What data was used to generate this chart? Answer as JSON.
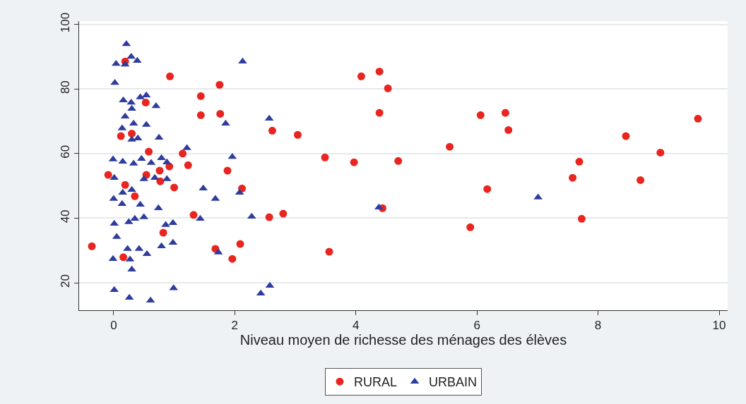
{
  "chart_data": {
    "type": "scatter",
    "xlabel": "Niveau moyen de richesse des ménages des élèves",
    "xlim": [
      -0.57,
      10.14
    ],
    "xticks": [
      0,
      2,
      4,
      6,
      8,
      10
    ],
    "ylim": [
      11.5,
      101
    ],
    "yticks": [
      20,
      40,
      60,
      80,
      100
    ],
    "grid": "y",
    "legend": "bottom",
    "series": [
      {
        "name": "RURAL",
        "color": "#e8251f",
        "marker": "circle",
        "x": [
          -0.36,
          -0.09,
          0.12,
          0.16,
          0.19,
          0.35,
          0.54,
          0.76,
          0.58,
          0.53,
          0.3,
          0.19,
          0.93,
          0.77,
          0.82,
          0.92,
          1.0,
          1.14,
          1.23,
          1.32,
          1.44,
          1.44,
          1.75,
          1.76,
          1.68,
          1.88,
          1.96,
          2.09,
          2.12,
          2.57,
          2.62,
          2.8,
          3.04,
          3.49,
          3.56,
          3.97,
          4.09,
          4.39,
          4.39,
          4.44,
          4.53,
          4.7,
          5.55,
          5.89,
          6.06,
          6.17,
          6.47,
          6.52,
          7.58,
          7.69,
          7.73,
          8.46,
          8.7,
          9.03,
          9.65
        ],
        "values": [
          31.3,
          53.4,
          65.4,
          27.9,
          50.3,
          46.8,
          53.4,
          54.7,
          60.6,
          75.8,
          66.2,
          88.5,
          83.9,
          51.4,
          35.5,
          56.0,
          49.5,
          60.0,
          56.4,
          41.0,
          77.8,
          71.9,
          81.3,
          72.3,
          30.5,
          54.7,
          27.4,
          32.0,
          49.2,
          40.3,
          67.1,
          41.4,
          65.8,
          58.8,
          29.6,
          57.3,
          83.9,
          85.4,
          72.6,
          43.1,
          80.2,
          57.7,
          62.1,
          37.2,
          71.9,
          49.0,
          72.6,
          67.3,
          52.5,
          57.5,
          39.8,
          65.4,
          51.8,
          60.3,
          70.8
        ]
      },
      {
        "name": "URBAIN",
        "color": "#2e3d9e",
        "marker": "triangle",
        "x": [
          0.21,
          0.04,
          0.19,
          0.29,
          0.39,
          0.02,
          0.16,
          0.29,
          0.44,
          0.54,
          0.7,
          0.3,
          0.19,
          0.33,
          0.14,
          0.3,
          0.4,
          0.54,
          0.75,
          -0.01,
          0.15,
          0.33,
          0.46,
          0.62,
          0.79,
          0.88,
          0.01,
          0.15,
          0.3,
          0.5,
          0.68,
          0.88,
          0.0,
          0.14,
          0.44,
          0.74,
          0.01,
          0.25,
          0.35,
          0.5,
          0.86,
          0.98,
          0.05,
          0.23,
          0.42,
          0.55,
          0.79,
          0.98,
          -0.01,
          0.27,
          0.3,
          0.01,
          0.26,
          0.61,
          0.99,
          1.21,
          1.48,
          1.43,
          1.68,
          1.73,
          1.85,
          1.96,
          2.08,
          2.13,
          2.28,
          2.43,
          2.58,
          2.57,
          4.38,
          7.01
        ],
        "values": [
          93.9,
          87.8,
          87.6,
          90.0,
          88.7,
          81.9,
          76.5,
          75.8,
          77.4,
          78.0,
          74.7,
          73.9,
          71.5,
          69.3,
          67.8,
          64.3,
          64.7,
          68.9,
          64.9,
          58.2,
          57.5,
          56.9,
          58.4,
          57.1,
          58.6,
          57.3,
          52.5,
          47.9,
          48.8,
          52.1,
          52.5,
          52.1,
          46.0,
          44.4,
          44.2,
          43.1,
          38.3,
          38.8,
          39.8,
          40.3,
          37.9,
          38.5,
          34.2,
          30.5,
          30.5,
          28.9,
          31.3,
          32.4,
          27.4,
          27.2,
          24.1,
          17.8,
          15.4,
          14.5,
          18.3,
          61.7,
          49.2,
          39.8,
          46.0,
          29.4,
          69.3,
          59.0,
          47.9,
          88.5,
          40.5,
          16.7,
          19.1,
          70.8,
          43.3,
          46.4
        ]
      }
    ]
  }
}
